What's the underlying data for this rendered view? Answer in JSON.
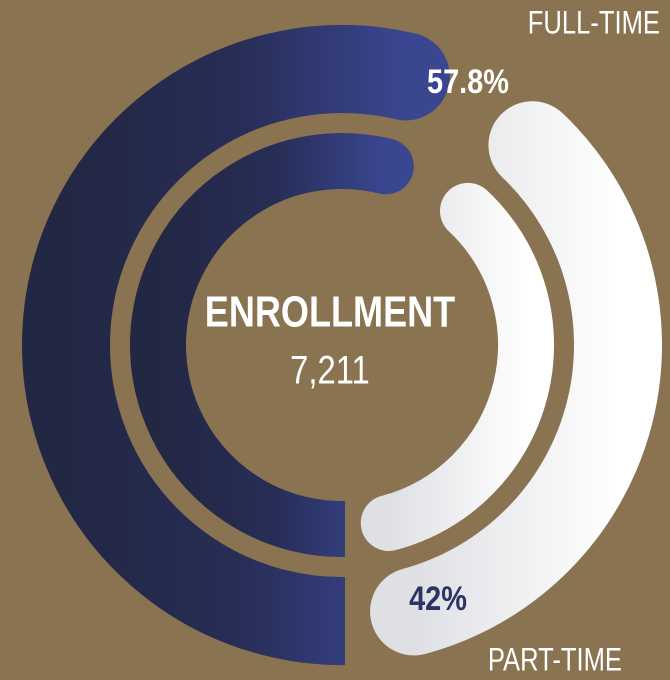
{
  "chart_data": {
    "type": "donut",
    "title": "ENROLLMENT",
    "total": {
      "value": 7211,
      "label": "7,211"
    },
    "categories": [
      "FULL-TIME",
      "PART-TIME"
    ],
    "values": [
      57.8,
      42
    ],
    "value_labels": [
      "57.8%",
      "42%"
    ],
    "colors": [
      "#2c3466",
      "#f2f3f5"
    ]
  }
}
